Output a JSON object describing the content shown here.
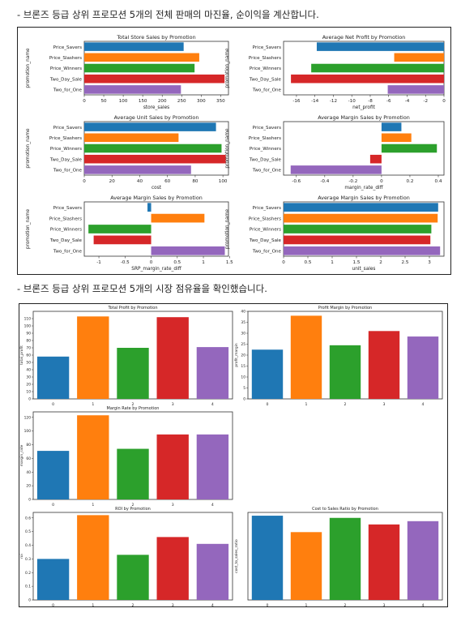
{
  "captions": {
    "first": "- 브론즈 등급 상위 프로모션 5개의 전체 판매의 마진율, 순이익을 계산합니다.",
    "second": "- 브론즈 등급 상위 프로모션 5개의 시장 점유율을 확인했습니다."
  },
  "colors": [
    "#1f77b4",
    "#ff7f0e",
    "#2ca02c",
    "#d62728",
    "#9467bd"
  ],
  "chart_data": [
    {
      "type": "bar",
      "orientation": "horizontal",
      "title": "Total Store Sales by Promotion",
      "xlabel": "store_sales",
      "ylabel": "promotion_name",
      "categories": [
        "Price_Savers",
        "Price_Slashers",
        "Price_Winners",
        "Two_Day_Sale",
        "Two_for_One"
      ],
      "values": [
        255,
        295,
        283,
        360,
        248
      ],
      "xlim": [
        0,
        370
      ],
      "xticks": [
        0,
        50,
        100,
        150,
        200,
        250,
        300,
        350
      ]
    },
    {
      "type": "bar",
      "orientation": "horizontal",
      "title": "Average Net Profit by Promotion",
      "xlabel": "net_profit",
      "ylabel": "promotion_name",
      "categories": [
        "Price_Savers",
        "Price_Slashers",
        "Price_Winners",
        "Two_Day_Sale",
        "Two_for_One"
      ],
      "values": [
        -13.8,
        -5.4,
        -14.4,
        -16.6,
        -6.1
      ],
      "xlim": [
        -17.4,
        0
      ],
      "xticks": [
        -16,
        -14,
        -12,
        -10,
        -8,
        -6,
        -4,
        -2,
        0
      ]
    },
    {
      "type": "bar",
      "orientation": "horizontal",
      "title": "Average Unit Sales by Promotion",
      "xlabel": "cost",
      "ylabel": "promotion_name",
      "categories": [
        "Price_Savers",
        "Price_Slashers",
        "Price_Winners",
        "Two_Day_Sale",
        "Two_for_One"
      ],
      "values": [
        95,
        68,
        99,
        102,
        77
      ],
      "xlim": [
        0,
        104
      ],
      "xticks": [
        0,
        20,
        40,
        60,
        80,
        100
      ]
    },
    {
      "type": "bar",
      "orientation": "horizontal",
      "title": "Average Margin Sales by Promotion",
      "xlabel": "margin_rate_diff",
      "ylabel": "promotion_name",
      "categories": [
        "Price_Savers",
        "Price_Slashers",
        "Price_Winners",
        "Two_Day_Sale",
        "Two_for_One"
      ],
      "values": [
        0.14,
        0.21,
        0.39,
        -0.08,
        -0.64
      ],
      "xlim": [
        -0.69,
        0.44
      ],
      "xticks": [
        -0.6,
        -0.4,
        -0.2,
        0.0,
        0.2,
        0.4
      ]
    },
    {
      "type": "bar",
      "orientation": "horizontal",
      "title": "Average Margin Sales by Promotion",
      "xlabel": "SRP_margin_rate_diff",
      "ylabel": "promotion_name",
      "categories": [
        "Price_Savers",
        "Price_Slashers",
        "Price_Winners",
        "Two_Day_Sale",
        "Two_for_One"
      ],
      "values": [
        -0.07,
        1.02,
        -1.2,
        -1.1,
        1.41
      ],
      "xlim": [
        -1.28,
        1.48
      ],
      "xticks": [
        -1.0,
        -0.5,
        0.0,
        0.5,
        1.0,
        1.5
      ]
    },
    {
      "type": "bar",
      "orientation": "horizontal",
      "title": "Average Margin Sales by Promotion",
      "xlabel": "unit_sales",
      "ylabel": "promotion_name",
      "categories": [
        "Price_Savers",
        "Price_Slashers",
        "Price_Winners",
        "Two_Day_Sale",
        "Two_for_One"
      ],
      "values": [
        3.18,
        3.17,
        3.04,
        3.02,
        3.22
      ],
      "xlim": [
        0,
        3.3
      ],
      "xticks": [
        0.0,
        0.5,
        1.0,
        1.5,
        2.0,
        2.5,
        3.0
      ]
    },
    {
      "type": "bar",
      "title": "Total Profit by Promotion",
      "xlabel": "",
      "ylabel": "total_profit",
      "categories": [
        "0",
        "1",
        "2",
        "3",
        "4"
      ],
      "values": [
        58,
        113,
        70,
        112,
        71
      ],
      "ylim": [
        0,
        120
      ],
      "yticks": [
        0,
        10,
        20,
        30,
        40,
        50,
        60,
        70,
        80,
        90,
        100,
        110
      ]
    },
    {
      "type": "bar",
      "title": "Profit Margin by Promotion",
      "xlabel": "",
      "ylabel": "profit_margin",
      "categories": [
        "0",
        "1",
        "2",
        "3",
        "4"
      ],
      "values": [
        22.5,
        38,
        24.5,
        31,
        28.5
      ],
      "ylim": [
        0,
        40
      ],
      "yticks": [
        0,
        5,
        10,
        15,
        20,
        25,
        30,
        35,
        40
      ]
    },
    {
      "type": "bar",
      "title": "Margin Rate by Promotion",
      "xlabel": "",
      "ylabel": "margin_rate",
      "categories": [
        "0",
        "1",
        "2",
        "3",
        "4"
      ],
      "values": [
        71,
        123,
        74,
        95,
        95
      ],
      "ylim": [
        0,
        128
      ],
      "yticks": [
        0,
        20,
        40,
        60,
        80,
        100,
        120
      ]
    },
    {
      "type": "bar",
      "title": "ROI by Promotion",
      "xlabel": "",
      "ylabel": "roi",
      "categories": [
        "0",
        "1",
        "2",
        "3",
        "4"
      ],
      "values": [
        0.3,
        0.62,
        0.33,
        0.46,
        0.41
      ],
      "ylim": [
        0,
        0.64
      ],
      "yticks": [
        0.0,
        0.1,
        0.2,
        0.3,
        0.4,
        0.5,
        0.6
      ]
    },
    {
      "type": "bar",
      "title": "Cost to Sales Ratio by Promotion",
      "xlabel": "",
      "ylabel": "cost_to_sales_ratio",
      "categories": [
        "0",
        "1",
        "2",
        "3",
        "4"
      ],
      "values": [
        0.77,
        0.62,
        0.75,
        0.69,
        0.72
      ],
      "ylim": [
        0,
        0.8
      ],
      "yticks": []
    }
  ]
}
